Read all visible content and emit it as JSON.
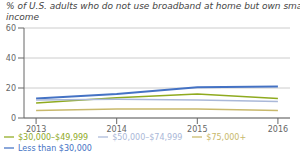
{
  "chart_data": {
    "type": "line",
    "title": "% of U.S. adults who do not use broadband at home but own smartphones, by\nincome",
    "x": [
      2013,
      2014,
      2015,
      2016
    ],
    "series": [
      {
        "name": "Less than $30,000",
        "color": "#4472c4",
        "values": [
          13,
          16,
          20.5,
          21
        ]
      },
      {
        "name": "$30,000–$49,999",
        "color": "#8faa1f",
        "values": [
          10,
          13.5,
          16,
          13
        ]
      },
      {
        "name": "$50,000–$74,999",
        "color": "#aab8d8",
        "values": [
          12,
          12.5,
          12,
          11
        ]
      },
      {
        "name": "$75,000+",
        "color": "#c8b86b",
        "values": [
          5,
          6,
          6,
          5
        ]
      }
    ],
    "xlim": [
      2012.85,
      2016.15
    ],
    "xticks": [
      2013,
      2014,
      2015,
      2016
    ],
    "ylim": [
      0,
      60
    ],
    "yticks": [
      0,
      20,
      40,
      60
    ],
    "grid": true,
    "legend": "bottom"
  }
}
